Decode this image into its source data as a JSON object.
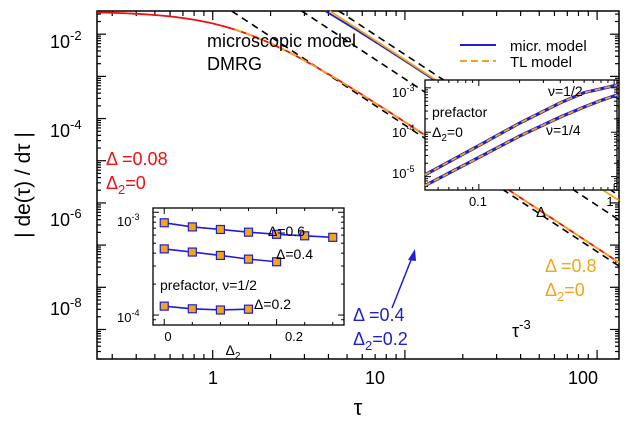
{
  "chart_data": [
    {
      "id": "main",
      "type": "line",
      "xscale": "log",
      "yscale": "log",
      "xlabel": "τ",
      "ylabel": "| de(τ) / dτ |",
      "xlim": [
        0.25,
        130
      ],
      "ylim_exp": [
        -9.7,
        -1.45
      ],
      "xticks": [
        {
          "value": 1,
          "label": "1"
        },
        {
          "value": 10,
          "label": "10"
        },
        {
          "value": 100,
          "label": "100"
        }
      ],
      "yticks": [
        {
          "exp": -2,
          "base": "10",
          "sup": "-2"
        },
        {
          "exp": -4,
          "base": "10",
          "sup": "-4"
        },
        {
          "exp": -6,
          "base": "10",
          "sup": "-6"
        },
        {
          "exp": -8,
          "base": "10",
          "sup": "-8"
        }
      ],
      "annotations": {
        "title1": "microscopic model",
        "title2": "DMRG",
        "red_delta": "Δ =0.08",
        "red_delta2": "Δ",
        "red_delta2_sub": "2",
        "red_delta2_val": "=0",
        "blue_delta": "Δ =0.4",
        "blue_delta2": "Δ",
        "blue_delta2_sub": "2",
        "blue_delta2_val": "=0.2",
        "orange_delta": "Δ =0.8",
        "orange_delta2": "Δ",
        "orange_delta2_sub": "2",
        "orange_delta2_val": "=0",
        "power_law": "τ",
        "power_law_sup": "-3"
      },
      "legend": [
        {
          "label": "micr. model",
          "color": "#1f1fd1",
          "dash": "solid"
        },
        {
          "label": "TL model",
          "color": "#f2a516",
          "dash": "dashed"
        }
      ],
      "series": [
        {
          "name": "micr. model",
          "color": "#ee1111",
          "curve": {
            "A": 0.085,
            "tau0": 1.35
          },
          "x_range": [
            0.25,
            130
          ]
        },
        {
          "name": "TL model",
          "color": "#f2a516",
          "dash": "dashed",
          "curve": {
            "A": 0.085,
            "tau0": 1.35
          },
          "x_range": [
            1.3,
            130
          ]
        },
        {
          "name": "micr. model",
          "color": "#1f1fd1",
          "curve": {
            "A": 2.38,
            "tau0": 1.32
          },
          "x_range": [
            0.25,
            27
          ]
        },
        {
          "name": "TL model",
          "color": "#f2a516",
          "curve": {
            "A": 2.5,
            "tau0": 0.74
          },
          "x_range": [
            0.25,
            130
          ]
        }
      ],
      "reference_lines": [
        {
          "name": "τ^-3",
          "color": "#000000",
          "dash": "dashed",
          "A": 0.07,
          "x_range": [
            0.25,
            130
          ]
        },
        {
          "name": "τ^-3",
          "color": "#000000",
          "dash": "dashed",
          "A": 0.87,
          "x_range": [
            0.25,
            130
          ]
        },
        {
          "name": "τ^-3",
          "color": "#000000",
          "dash": "dashed",
          "A": 3.3,
          "x_range": [
            0.25,
            130
          ]
        }
      ]
    },
    {
      "id": "inset_top",
      "type": "line",
      "xscale": "log",
      "yscale": "log",
      "xlabel": "Δ",
      "xlim": [
        0.04,
        1.05
      ],
      "ylim": [
        5e-06,
        0.0015
      ],
      "xticks": [
        {
          "value": 0.1,
          "label": "0.1"
        },
        {
          "value": 1,
          "label": "1"
        }
      ],
      "yticks": [
        {
          "exp": -3,
          "base": "10",
          "sup": "-3"
        },
        {
          "exp": -4,
          "base": "10",
          "sup": "-4"
        },
        {
          "exp": -5,
          "base": "10",
          "sup": "-5"
        }
      ],
      "annotations": {
        "prefactor": "prefactor",
        "delta2": "Δ",
        "delta2_sub": "2",
        "delta2_val": "=0",
        "nu_half": "ν=1/2",
        "nu_quarter": "ν=1/4"
      },
      "series": [
        {
          "name": "micr. model",
          "color": "#1f1fd1",
          "x": [
            0.04,
            0.1,
            0.2,
            0.4,
            0.6,
            0.8,
            1.05
          ],
          "y": [
            1.1e-05,
            5e-05,
            0.00016,
            0.00046,
            0.00078,
            0.00095,
            0.00115
          ]
        },
        {
          "name": "TL model",
          "color": "#f2a516",
          "dash": "dashed",
          "x": [
            0.04,
            0.1,
            0.2,
            0.4,
            0.6,
            0.8,
            1.05
          ],
          "y": [
            1.1e-05,
            5e-05,
            0.00016,
            0.00046,
            0.00078,
            0.00095,
            0.00115
          ]
        },
        {
          "name": "micr. model",
          "color": "#1f1fd1",
          "x": [
            0.04,
            0.1,
            0.2,
            0.4,
            0.6,
            0.8,
            1.05
          ],
          "y": [
            6.3e-06,
            2.7e-05,
            8.2e-05,
            0.00022,
            0.00037,
            0.00052,
            0.00069
          ]
        },
        {
          "name": "TL model",
          "color": "#f2a516",
          "dash": "dashed",
          "x": [
            0.04,
            0.1,
            0.2,
            0.4,
            0.6,
            0.8,
            1.05
          ],
          "y": [
            6.3e-06,
            2.7e-05,
            8.2e-05,
            0.00022,
            0.00037,
            0.00052,
            0.00069
          ]
        }
      ]
    },
    {
      "id": "inset_bottom",
      "type": "line",
      "xscale": "linear",
      "yscale": "log",
      "xlabel": "Δ",
      "xlabel_sub": "2",
      "xlim": [
        -0.02,
        0.32
      ],
      "ylim": [
        8e-05,
        0.0011
      ],
      "xticks": [
        {
          "value": 0,
          "label": "0"
        },
        {
          "value": 0.2,
          "label": "0.2"
        }
      ],
      "yticks": [
        {
          "exp": -3,
          "base": "10",
          "sup": "-3"
        },
        {
          "exp": -4,
          "base": "10",
          "sup": "-4"
        }
      ],
      "annotations": {
        "d06": "Δ=0.6",
        "d04": "Δ=0.4",
        "d02": "Δ=0.2",
        "prefactor": "prefactor, ν=1/2"
      },
      "series": [
        {
          "name": "Δ=0.6",
          "color": "#1f1fd1",
          "marker_color": "#f2a516",
          "x": [
            0,
            0.05,
            0.1,
            0.15,
            0.2,
            0.25,
            0.3
          ],
          "y": [
            0.00079,
            0.00072,
            0.00068,
            0.00064,
            0.00061,
            0.00059,
            0.00057
          ]
        },
        {
          "name": "Δ=0.4",
          "color": "#1f1fd1",
          "marker_color": "#f2a516",
          "x": [
            0,
            0.05,
            0.1,
            0.15,
            0.2
          ],
          "y": [
            0.00044,
            0.00041,
            0.00038,
            0.00035,
            0.00033
          ]
        },
        {
          "name": "Δ=0.2",
          "color": "#1f1fd1",
          "marker_color": "#f2a516",
          "x": [
            0,
            0.05,
            0.1,
            0.15
          ],
          "y": [
            0.000122,
            0.000115,
            0.000112,
            0.000114
          ]
        }
      ]
    }
  ]
}
